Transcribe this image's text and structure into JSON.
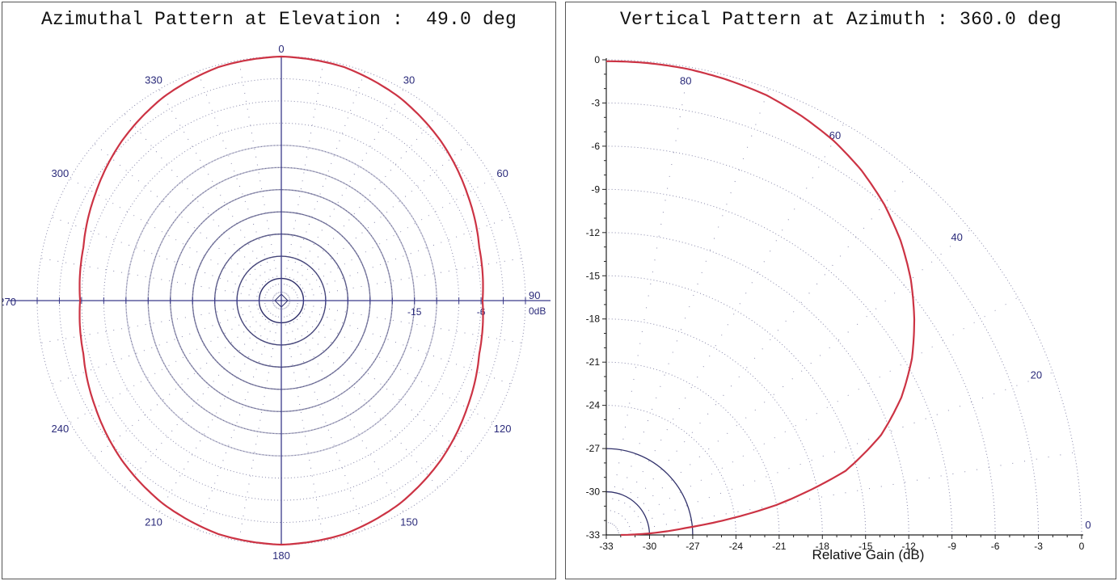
{
  "colors": {
    "pattern": "#cc3344",
    "ring_dark": "#30306a",
    "ring_light": "#8888aa",
    "axis": "#3a3a8a",
    "label": "#2a2a7a",
    "frame": "#555555"
  },
  "chart_data": [
    {
      "type": "polar",
      "title": "Azimuthal Pattern at Elevation :  49.0 deg",
      "angle_labels": [
        {
          "angle": 0,
          "text": "0"
        },
        {
          "angle": 30,
          "text": "30"
        },
        {
          "angle": 60,
          "text": "60"
        },
        {
          "angle": 90,
          "text": "90"
        },
        {
          "angle": 120,
          "text": "120"
        },
        {
          "angle": 150,
          "text": "150"
        },
        {
          "angle": 180,
          "text": "180"
        },
        {
          "angle": 210,
          "text": "210"
        },
        {
          "angle": 240,
          "text": "240"
        },
        {
          "angle": 270,
          "text": "270"
        },
        {
          "angle": 300,
          "text": "300"
        },
        {
          "angle": 330,
          "text": "330"
        }
      ],
      "radial_labels": [
        {
          "db": -15,
          "text": "-15"
        },
        {
          "db": -6,
          "text": "-6"
        },
        {
          "db": 0,
          "text": "0dB"
        }
      ],
      "db_range": [
        -33,
        0
      ],
      "series": [
        {
          "azimuth_deg": [
            0,
            15,
            30,
            45,
            60,
            75,
            90,
            105,
            120,
            135,
            150,
            165,
            180,
            195,
            210,
            225,
            240,
            255,
            270,
            285,
            300,
            315,
            330,
            345,
            360
          ],
          "gain_db": [
            0,
            -0.3,
            -1.2,
            -2.5,
            -4.0,
            -5.3,
            -5.8,
            -5.3,
            -4.0,
            -2.5,
            -1.2,
            -0.3,
            0,
            -0.3,
            -1.2,
            -2.5,
            -4.0,
            -5.3,
            -5.8,
            -5.3,
            -4.0,
            -2.5,
            -1.2,
            -0.3,
            0
          ]
        }
      ]
    },
    {
      "type": "polar-quadrant",
      "title": "Vertical Pattern at Azimuth : 360.0 deg",
      "xlabel": "Relative Gain (dB)",
      "x_ticks": [
        "-33",
        "-30",
        "-27",
        "-24",
        "-21",
        "-18",
        "-15",
        "-12",
        "-9",
        "-6",
        "-3",
        "0"
      ],
      "y_ticks": [
        "0",
        "-3",
        "-6",
        "-9",
        "-12",
        "-15",
        "-18",
        "-21",
        "-24",
        "-27",
        "-30",
        "-33"
      ],
      "angle_labels": [
        {
          "angle": 0,
          "text": "0"
        },
        {
          "angle": 20,
          "text": "20"
        },
        {
          "angle": 40,
          "text": "40"
        },
        {
          "angle": 60,
          "text": "60"
        },
        {
          "angle": 80,
          "text": "80"
        }
      ],
      "db_range": [
        -33,
        0
      ],
      "series": [
        {
          "elevation_deg": [
            0,
            2,
            5,
            10,
            15,
            20,
            25,
            30,
            35,
            40,
            45,
            50,
            55,
            60,
            65,
            70,
            75,
            80,
            85,
            90
          ],
          "gain_db": [
            -32,
            -30,
            -27.5,
            -21,
            -15.8,
            -12.7,
            -10.4,
            -8.5,
            -6.9,
            -5.4,
            -4.1,
            -3.0,
            -2.1,
            -1.4,
            -0.9,
            -0.5,
            -0.3,
            -0.15,
            -0.1,
            -0.1
          ]
        }
      ]
    }
  ]
}
